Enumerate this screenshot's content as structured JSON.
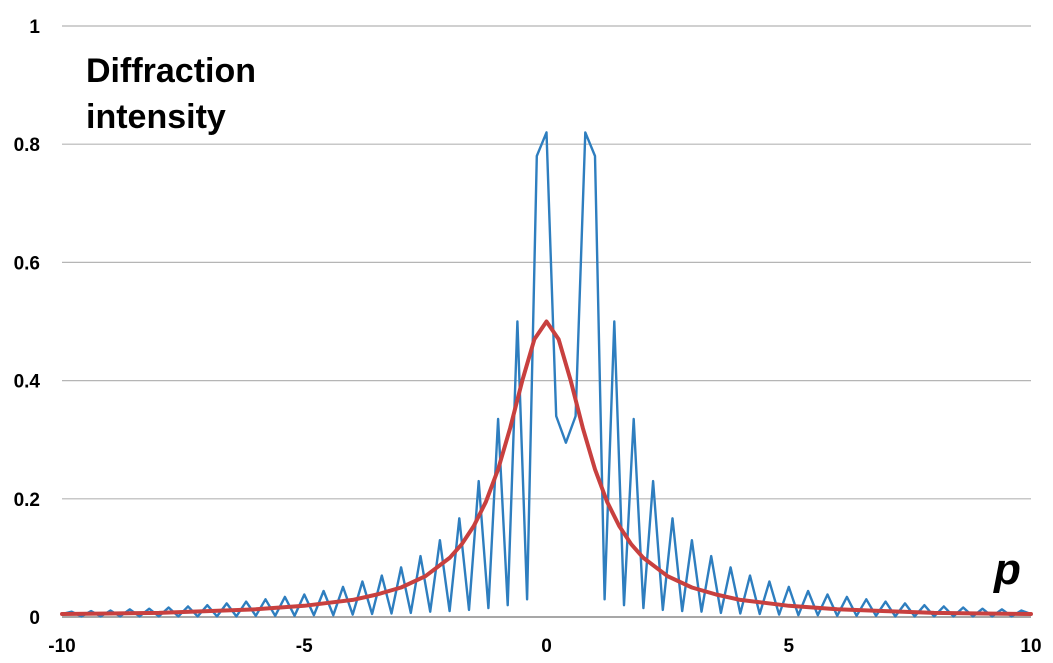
{
  "chart_data": {
    "type": "line",
    "ylabel_lines": [
      "Diffraction",
      "intensity"
    ],
    "xlabel": "p",
    "xlim": [
      -10,
      10
    ],
    "ylim": [
      0,
      1
    ],
    "x_ticks": [
      "-10",
      "-5",
      "0",
      "5",
      "10"
    ],
    "y_ticks": [
      "0",
      "0.2",
      "0.4",
      "0.6",
      "0.8",
      "1"
    ],
    "grid": true,
    "legend": "none",
    "series": [
      {
        "color": "#2e7ebf",
        "x": [
          -10.0,
          -9.8,
          -9.6,
          -9.4,
          -9.2,
          -9.0,
          -8.8,
          -8.6,
          -8.4,
          -8.2,
          -8.0,
          -7.8,
          -7.6,
          -7.4,
          -7.2,
          -7.0,
          -6.8,
          -6.6,
          -6.4,
          -6.2,
          -6.0,
          -5.8,
          -5.6,
          -5.4,
          -5.2,
          -5.0,
          -4.8,
          -4.6,
          -4.4,
          -4.2,
          -4.0,
          -3.8,
          -3.6,
          -3.4,
          -3.2,
          -3.0,
          -2.8,
          -2.6,
          -2.4,
          -2.2,
          -2.0,
          -1.8,
          -1.6,
          -1.4,
          -1.2,
          -1.0,
          -0.8,
          -0.6,
          -0.4,
          -0.2,
          0.0,
          0.2,
          0.4,
          0.6,
          0.8,
          1.0,
          1.2,
          1.4,
          1.6,
          1.8,
          2.0,
          2.2,
          2.4,
          2.6,
          2.8,
          3.0,
          3.2,
          3.4,
          3.6,
          3.8,
          4.0,
          4.2,
          4.4,
          4.6,
          4.8,
          5.0,
          5.2,
          5.4,
          5.6,
          5.8,
          6.0,
          6.2,
          6.4,
          6.6,
          6.8,
          7.0,
          7.2,
          7.4,
          7.6,
          7.8,
          8.0,
          8.2,
          8.4,
          8.6,
          8.8,
          9.0,
          9.2,
          9.4,
          9.6,
          9.8,
          10.0
        ],
        "values": [
          0.005,
          0.009,
          0.001,
          0.01,
          0.001,
          0.011,
          0.001,
          0.013,
          0.001,
          0.014,
          0.001,
          0.016,
          0.001,
          0.018,
          0.001,
          0.02,
          0.001,
          0.023,
          0.001,
          0.026,
          0.002,
          0.03,
          0.002,
          0.034,
          0.002,
          0.038,
          0.003,
          0.044,
          0.003,
          0.051,
          0.004,
          0.06,
          0.005,
          0.07,
          0.006,
          0.084,
          0.007,
          0.103,
          0.009,
          0.13,
          0.01,
          0.167,
          0.012,
          0.23,
          0.015,
          0.335,
          0.02,
          0.5,
          0.03,
          0.78,
          0.82,
          0.34,
          0.295,
          0.34,
          0.82,
          0.78,
          0.03,
          0.5,
          0.02,
          0.335,
          0.015,
          0.23,
          0.012,
          0.167,
          0.01,
          0.13,
          0.009,
          0.103,
          0.007,
          0.084,
          0.006,
          0.07,
          0.005,
          0.06,
          0.004,
          0.051,
          0.003,
          0.044,
          0.003,
          0.038,
          0.002,
          0.034,
          0.002,
          0.03,
          0.002,
          0.026,
          0.001,
          0.023,
          0.001,
          0.02,
          0.001,
          0.018,
          0.001,
          0.016,
          0.001,
          0.014,
          0.001,
          0.013,
          0.001,
          0.011,
          0.005
        ]
      },
      {
        "color": "#c8403f",
        "x": [
          -10,
          -9,
          -8,
          -7,
          -6,
          -5,
          -4.5,
          -4,
          -3.5,
          -3,
          -2.5,
          -2,
          -1.75,
          -1.5,
          -1.25,
          -1,
          -0.75,
          -0.5,
          -0.25,
          0,
          0.25,
          0.5,
          0.75,
          1,
          1.25,
          1.5,
          1.75,
          2,
          2.5,
          3,
          3.5,
          4,
          4.5,
          5,
          6,
          7,
          8,
          9,
          10
        ],
        "values": [
          0.005,
          0.006,
          0.007,
          0.01,
          0.013,
          0.019,
          0.024,
          0.029,
          0.038,
          0.05,
          0.069,
          0.1,
          0.123,
          0.154,
          0.195,
          0.25,
          0.32,
          0.4,
          0.47,
          0.5,
          0.47,
          0.4,
          0.32,
          0.25,
          0.195,
          0.154,
          0.123,
          0.1,
          0.069,
          0.05,
          0.038,
          0.029,
          0.024,
          0.019,
          0.013,
          0.01,
          0.007,
          0.006,
          0.005
        ]
      }
    ]
  }
}
